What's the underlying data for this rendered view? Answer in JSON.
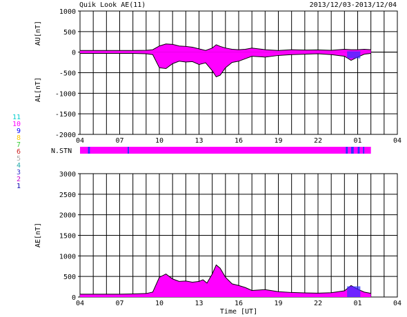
{
  "header": {
    "title": "Quik Look AE(11)",
    "date_range": "2013/12/03-2013/12/04"
  },
  "colors": {
    "fill": "#ff00ff",
    "blue": "#3030ff",
    "line": "#000000",
    "grid": "#000000",
    "station_colors": [
      "#0000aa",
      "#cc00cc",
      "#3333cc",
      "#22aaaa",
      "#aaaaaa",
      "#cc2222",
      "#33cc33",
      "#ffcc00",
      "#0000ff",
      "#ff00ff",
      "#00cccc"
    ]
  },
  "station_legend": {
    "label": "N.STN",
    "numbers": [
      "11",
      "10",
      "9",
      "8",
      "7",
      "6",
      "5",
      "4",
      "3",
      "2",
      "1"
    ]
  },
  "chart_data": [
    {
      "type": "area",
      "title": "",
      "ylabel_upper": "AU[nT]",
      "ylabel_lower": "AL[nT]",
      "xlabel": "",
      "x_tick_labels": [
        "04",
        "07",
        "10",
        "13",
        "16",
        "19",
        "22",
        "01",
        "04"
      ],
      "x_tick_hours": [
        4,
        7,
        10,
        13,
        16,
        19,
        22,
        25,
        28
      ],
      "xlim": [
        4,
        28
      ],
      "ylim": [
        -2000,
        1000
      ],
      "y_ticks": [
        1000,
        500,
        0,
        -500,
        -1000,
        -1500,
        -2000
      ],
      "y_tick_labels": [
        "1000",
        "500",
        "0",
        "-500",
        "-1000",
        "-1500",
        "-2000"
      ],
      "grid": true,
      "series": [
        {
          "name": "AU",
          "hours": [
            4,
            5,
            6,
            7,
            8,
            9,
            9.5,
            10,
            10.5,
            11,
            11.5,
            12,
            12.5,
            13,
            13.5,
            14,
            14.3,
            14.6,
            15,
            15.5,
            16,
            16.5,
            17,
            18,
            19,
            20,
            21,
            22,
            23,
            24,
            24.5,
            25,
            25.5,
            26
          ],
          "values": [
            40,
            40,
            40,
            40,
            40,
            45,
            60,
            150,
            200,
            190,
            150,
            140,
            120,
            80,
            40,
            100,
            180,
            140,
            100,
            70,
            60,
            70,
            100,
            60,
            40,
            60,
            50,
            55,
            45,
            70,
            60,
            60,
            70,
            60
          ]
        },
        {
          "name": "AL",
          "hours": [
            4,
            5,
            6,
            7,
            8,
            9,
            9.5,
            10,
            10.5,
            11,
            11.5,
            12,
            12.5,
            13,
            13.5,
            14,
            14.3,
            14.6,
            15,
            15.5,
            16,
            16.5,
            17,
            18,
            19,
            20,
            21,
            22,
            23,
            24,
            24.5,
            25,
            25.5,
            26
          ],
          "values": [
            -30,
            -30,
            -30,
            -30,
            -30,
            -40,
            -60,
            -380,
            -400,
            -280,
            -220,
            -240,
            -230,
            -300,
            -260,
            -450,
            -600,
            -560,
            -380,
            -250,
            -220,
            -160,
            -100,
            -120,
            -80,
            -60,
            -50,
            -40,
            -60,
            -100,
            -200,
            -120,
            -50,
            -30
          ]
        }
      ]
    },
    {
      "type": "area",
      "title": "",
      "ylabel": "AE[nT]",
      "xlabel": "Time [UT]",
      "x_tick_labels": [
        "04",
        "07",
        "10",
        "13",
        "16",
        "19",
        "22",
        "01",
        "04"
      ],
      "x_tick_hours": [
        4,
        7,
        10,
        13,
        16,
        19,
        22,
        25,
        28
      ],
      "xlim": [
        4,
        28
      ],
      "ylim": [
        0,
        3000
      ],
      "y_ticks": [
        3000,
        2500,
        2000,
        1500,
        1000,
        500,
        0
      ],
      "y_tick_labels": [
        "3000",
        "2500",
        "2000",
        "1500",
        "1000",
        "500",
        "0"
      ],
      "grid": true,
      "series": [
        {
          "name": "AE",
          "hours": [
            4,
            5,
            6,
            7,
            8,
            9,
            9.5,
            10,
            10.5,
            11,
            11.5,
            12,
            12.5,
            13,
            13.3,
            13.6,
            14,
            14.3,
            14.6,
            15,
            15.5,
            16,
            16.5,
            17,
            18,
            19,
            20,
            21,
            22,
            23,
            24,
            24.5,
            25,
            25.5,
            26
          ],
          "values": [
            70,
            70,
            70,
            70,
            75,
            85,
            120,
            480,
            560,
            440,
            380,
            390,
            360,
            380,
            420,
            340,
            560,
            780,
            700,
            480,
            320,
            280,
            230,
            160,
            180,
            130,
            110,
            100,
            95,
            105,
            150,
            280,
            190,
            120,
            90
          ]
        }
      ]
    }
  ]
}
